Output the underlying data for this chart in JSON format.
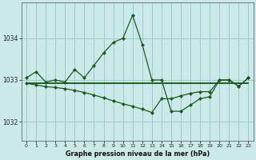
{
  "title": "Graphe pression niveau de la mer (hPa)",
  "background_color": "#cce9e9",
  "grid_color": "#99cccc",
  "line_color": "#1a5c1a",
  "xlim": [
    -0.5,
    23.5
  ],
  "ylim": [
    1031.55,
    1034.85
  ],
  "xticks": [
    0,
    1,
    2,
    3,
    4,
    5,
    6,
    7,
    8,
    9,
    10,
    11,
    12,
    13,
    14,
    15,
    16,
    17,
    18,
    19,
    20,
    21,
    22,
    23
  ],
  "yticks": [
    1032,
    1033,
    1034
  ],
  "series1_x": [
    0,
    1,
    2,
    3,
    4,
    5,
    6,
    7,
    8,
    9,
    10,
    11,
    12,
    13,
    14,
    15,
    16,
    17,
    18,
    19,
    20,
    21,
    22,
    23
  ],
  "series1_y": [
    1033.05,
    1033.2,
    1032.95,
    1033.0,
    1032.95,
    1033.25,
    1033.05,
    1033.35,
    1033.65,
    1033.9,
    1034.0,
    1034.55,
    1033.85,
    1033.0,
    1033.0,
    1032.25,
    1032.25,
    1032.4,
    1032.55,
    1032.6,
    1033.0,
    1033.0,
    1032.85,
    1033.05
  ],
  "series2_x": [
    0,
    1,
    2,
    3,
    4,
    5,
    6,
    7,
    8,
    9,
    10,
    11,
    12,
    13,
    14,
    15,
    16,
    17,
    18,
    19,
    20,
    21,
    22,
    23
  ],
  "series2_y": [
    1032.92,
    1032.88,
    1032.84,
    1032.82,
    1032.79,
    1032.75,
    1032.7,
    1032.64,
    1032.57,
    1032.5,
    1032.43,
    1032.37,
    1032.3,
    1032.22,
    1032.55,
    1032.55,
    1032.62,
    1032.68,
    1032.72,
    1032.72,
    1033.0,
    1033.0,
    1032.85,
    1033.05
  ],
  "series3_x": [
    0,
    1,
    2,
    3,
    4,
    5,
    6,
    7,
    8,
    9,
    10,
    11,
    12,
    13,
    14,
    15,
    16,
    17,
    18,
    19,
    20,
    21,
    22,
    23
  ],
  "series3_y": [
    1032.92,
    1032.92,
    1032.92,
    1032.92,
    1032.92,
    1032.92,
    1032.92,
    1032.92,
    1032.92,
    1032.92,
    1032.92,
    1032.92,
    1032.92,
    1032.92,
    1032.92,
    1032.92,
    1032.92,
    1032.92,
    1032.92,
    1032.92,
    1032.92,
    1032.92,
    1032.92,
    1032.92
  ]
}
